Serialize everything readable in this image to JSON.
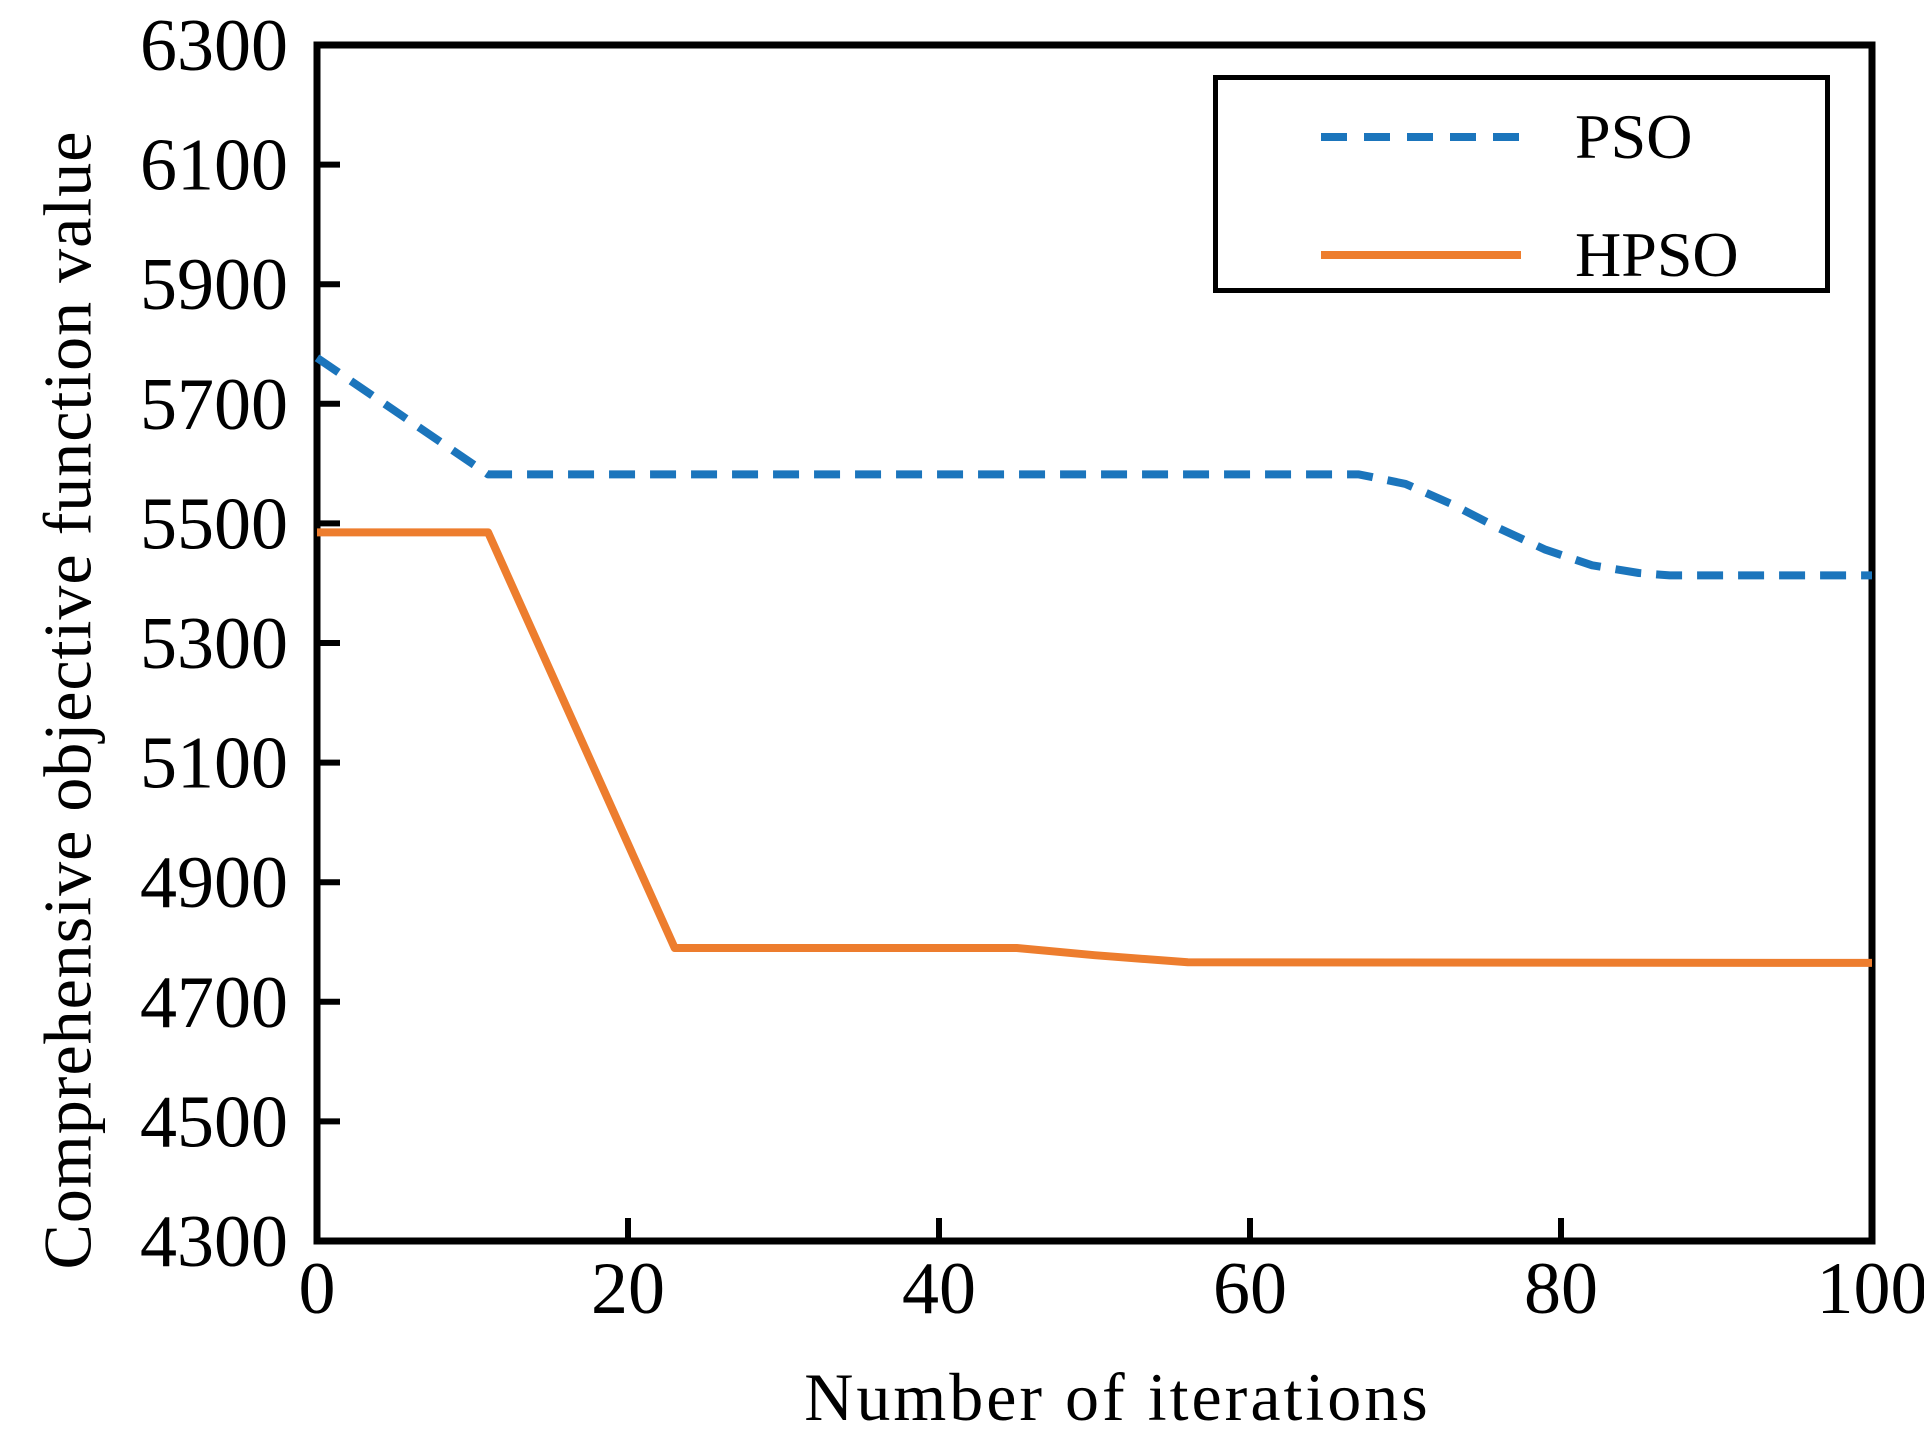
{
  "chart_data": {
    "type": "line",
    "xlabel": "Number of iterations",
    "ylabel": "Comprehensive objective function value",
    "xlim": [
      0,
      100
    ],
    "ylim": [
      4300,
      6300
    ],
    "xticks": [
      0,
      20,
      40,
      60,
      80,
      100
    ],
    "yticks": [
      4300,
      4500,
      4700,
      4900,
      5100,
      5300,
      5500,
      5700,
      5900,
      6100,
      6300
    ],
    "grid": false,
    "legend_position": "top-right",
    "frame_color": "#000000",
    "series": [
      {
        "name": "PSO",
        "color": "#1B75BC",
        "style": "dashed",
        "points": [
          [
            0,
            5777
          ],
          [
            11,
            5582
          ],
          [
            67,
            5582
          ],
          [
            70,
            5566
          ],
          [
            73,
            5532
          ],
          [
            76,
            5492
          ],
          [
            79,
            5456
          ],
          [
            82,
            5430
          ],
          [
            85,
            5417
          ],
          [
            87,
            5413
          ],
          [
            100,
            5413
          ]
        ]
      },
      {
        "name": "HPSO",
        "color": "#ED7D2E",
        "style": "solid",
        "points": [
          [
            0,
            5485
          ],
          [
            11,
            5485
          ],
          [
            23,
            4790
          ],
          [
            45,
            4790
          ],
          [
            50,
            4778
          ],
          [
            56,
            4766
          ],
          [
            100,
            4765
          ]
        ]
      }
    ]
  }
}
